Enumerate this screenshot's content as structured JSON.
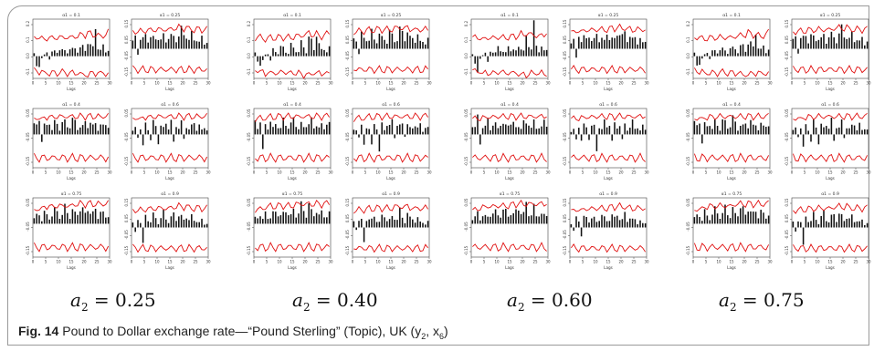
{
  "caption": {
    "figure_label": "Fig. 14",
    "text": "Pound to Dollar exchange rate—“Pound Sterling” (Topic), UK (y",
    "sub1": "2",
    "mid": ", x",
    "sub2": "6",
    "end": ")"
  },
  "groups": [
    {
      "var": "a",
      "sub": "2",
      "eq": " = 0.25"
    },
    {
      "var": "a",
      "sub": "2",
      "eq": " = 0.40"
    },
    {
      "var": "a",
      "sub": "2",
      "eq": " = 0.60"
    },
    {
      "var": "a",
      "sub": "2",
      "eq": " = 0.75"
    }
  ],
  "colors": {
    "bars": "#111111",
    "bands": "#e01010",
    "frame": "#444444"
  },
  "chart_data": {
    "type": "bar",
    "description_note": "Grid of 24 lag-correlation panels: 4 groups (a2 values) x 3 rows x 2 columns (a1 values). Bar heights approximate.",
    "x": [
      1,
      2,
      3,
      4,
      5,
      6,
      7,
      8,
      9,
      10,
      11,
      12,
      13,
      14,
      15,
      16,
      17,
      18,
      19,
      20,
      21,
      22,
      23,
      24,
      25,
      26,
      27,
      28,
      29,
      30
    ],
    "xticks": [
      "0",
      "5",
      "10",
      "15",
      "20",
      "25",
      "30"
    ],
    "xlabel": "Lags",
    "panel_titles": [
      "α1 = 0.1",
      "α1 = 0.25",
      "α1 = 0.4",
      "α1 = 0.6",
      "α1 = 0.75",
      "α1 = 0.9"
    ],
    "panels": [
      {
        "group": 0,
        "title": "α1 = 0.1",
        "yticks": [
          "0.2",
          "0.1",
          "0.0",
          "-0.1"
        ],
        "ylim": [
          -0.15,
          0.25
        ],
        "values": [
          0.02,
          -0.05,
          -0.08,
          -0.02,
          0.01,
          0.02,
          -0.03,
          0.04,
          0.03,
          0.02,
          0.06,
          0.05,
          0.03,
          0.02,
          0.07,
          0.05,
          0.04,
          0.03,
          0.08,
          0.06,
          0.03,
          0.12,
          0.09,
          0.05,
          0.18,
          0.07,
          0.04,
          0.06,
          0.03,
          0.05
        ],
        "upper": [
          0.12,
          0.13,
          0.13,
          0.12,
          0.11,
          0.12,
          0.13,
          0.12,
          0.12,
          0.13,
          0.13,
          0.12,
          0.13,
          0.13,
          0.12,
          0.13,
          0.14,
          0.13,
          0.14,
          0.15,
          0.14,
          0.16,
          0.15,
          0.14,
          0.15,
          0.14,
          0.13,
          0.14,
          0.15,
          0.16
        ],
        "lower": [
          -0.09,
          -0.1,
          -0.11,
          -0.1,
          -0.12,
          -0.11,
          -0.12,
          -0.11,
          -0.11,
          -0.12,
          -0.11,
          -0.1,
          -0.11,
          -0.12,
          -0.11,
          -0.11,
          -0.12,
          -0.11,
          -0.12,
          -0.13,
          -0.12,
          -0.13,
          -0.12,
          -0.11,
          -0.12,
          -0.11,
          -0.12,
          -0.11,
          -0.12,
          -0.12
        ]
      },
      {
        "group": 0,
        "title": "α1 = 0.25",
        "yticks": [
          "0.15",
          "0.05",
          "-0.05",
          "-0.15"
        ],
        "ylim": [
          -0.18,
          0.18
        ],
        "values": [
          0.05,
          0.06,
          -0.04,
          0.08,
          0.06,
          0.07,
          0.05,
          0.09,
          0.06,
          0.05,
          0.08,
          0.06,
          0.07,
          0.04,
          0.09,
          0.08,
          0.06,
          0.05,
          0.1,
          0.11,
          0.07,
          0.09,
          0.06,
          0.08,
          0.05,
          0.07,
          0.04,
          0.06,
          0.03,
          0.05
        ],
        "upper": [
          0.1,
          0.1,
          0.11,
          0.11,
          0.1,
          0.11,
          0.12,
          0.11,
          0.11,
          0.12,
          0.12,
          0.11,
          0.12,
          0.12,
          0.11,
          0.12,
          0.13,
          0.12,
          0.13,
          0.13,
          0.12,
          0.13,
          0.12,
          0.12,
          0.11,
          0.12,
          0.12,
          0.11,
          0.12,
          0.12
        ],
        "lower": [
          -0.12,
          -0.12,
          -0.13,
          -0.13,
          -0.12,
          -0.13,
          -0.13,
          -0.12,
          -0.13,
          -0.13,
          -0.12,
          -0.13,
          -0.13,
          -0.12,
          -0.13,
          -0.13,
          -0.12,
          -0.13,
          -0.13,
          -0.12,
          -0.13,
          -0.13,
          -0.12,
          -0.13,
          -0.13,
          -0.12,
          -0.13,
          -0.13,
          -0.12,
          -0.13
        ]
      },
      {
        "group": 0,
        "title": "α1 = 0.4",
        "yticks": [
          "0.05",
          "-0.05",
          "-0.15"
        ],
        "ylim": [
          -0.18,
          0.14
        ],
        "values": [
          0.06,
          0.04,
          0.08,
          -0.06,
          0.05,
          0.04,
          0.07,
          0.03,
          0.06,
          0.05,
          0.03,
          0.07,
          0.06,
          0.04,
          0.05,
          0.08,
          0.06,
          0.03,
          0.05,
          0.04,
          0.06,
          0.05,
          0.07,
          0.04,
          0.06,
          0.03,
          0.05,
          0.04,
          0.06,
          0.05
        ],
        "upper": [
          0.08,
          0.09,
          0.09,
          0.08,
          0.09,
          0.09,
          0.1,
          0.09,
          0.09,
          0.1,
          0.1,
          0.09,
          0.1,
          0.1,
          0.09,
          0.1,
          0.1,
          0.09,
          0.1,
          0.1,
          0.09,
          0.1,
          0.1,
          0.09,
          0.1,
          0.1,
          0.09,
          0.1,
          0.1,
          0.1
        ],
        "lower": [
          -0.12,
          -0.13,
          -0.13,
          -0.12,
          -0.13,
          -0.13,
          -0.12,
          -0.13,
          -0.13,
          -0.12,
          -0.13,
          -0.13,
          -0.12,
          -0.13,
          -0.13,
          -0.12,
          -0.13,
          -0.13,
          -0.12,
          -0.13,
          -0.13,
          -0.12,
          -0.13,
          -0.13,
          -0.12,
          -0.13,
          -0.13,
          -0.12,
          -0.13,
          -0.13
        ]
      },
      {
        "group": 0,
        "title": "α1 = 0.6",
        "yticks": [
          "0.05",
          "-0.05",
          "-0.15"
        ],
        "ylim": [
          -0.18,
          0.14
        ],
        "values": [
          0.02,
          0.03,
          -0.02,
          0.04,
          -0.05,
          0.05,
          0.03,
          -0.04,
          0.06,
          0.04,
          -0.08,
          0.05,
          0.03,
          0.06,
          0.04,
          0.07,
          -0.03,
          0.05,
          0.04,
          0.06,
          -0.02,
          0.05,
          0.03,
          0.04,
          0.06,
          0.03,
          0.05,
          0.02,
          0.04,
          0.03
        ],
        "upper": [
          0.08,
          0.09,
          0.09,
          0.08,
          0.09,
          0.09,
          0.1,
          0.09,
          0.09,
          0.1,
          0.1,
          0.09,
          0.1,
          0.1,
          0.09,
          0.1,
          0.1,
          0.09,
          0.1,
          0.1,
          0.09,
          0.1,
          0.1,
          0.09,
          0.1,
          0.1,
          0.09,
          0.1,
          0.1,
          0.1
        ],
        "lower": [
          -0.12,
          -0.13,
          -0.13,
          -0.12,
          -0.13,
          -0.13,
          -0.12,
          -0.13,
          -0.13,
          -0.12,
          -0.13,
          -0.13,
          -0.12,
          -0.13,
          -0.13,
          -0.12,
          -0.13,
          -0.13,
          -0.12,
          -0.13,
          -0.13,
          -0.12,
          -0.13,
          -0.13,
          -0.12,
          -0.13,
          -0.13,
          -0.12,
          -0.13,
          -0.13
        ]
      },
      {
        "group": 0,
        "title": "α1 = 0.75",
        "yticks": [
          "0.05",
          "-0.05",
          "-0.15"
        ],
        "ylim": [
          -0.18,
          0.14
        ],
        "values": [
          0.03,
          0.04,
          0.05,
          0.02,
          0.06,
          0.04,
          0.03,
          0.05,
          0.07,
          0.06,
          0.04,
          0.05,
          0.08,
          0.06,
          0.04,
          0.07,
          0.05,
          0.06,
          0.09,
          0.07,
          0.05,
          0.1,
          0.06,
          0.05,
          0.08,
          0.04,
          0.06,
          0.05,
          0.04,
          0.05
        ],
        "upper": [
          0.07,
          0.08,
          0.08,
          0.08,
          0.09,
          0.09,
          0.1,
          0.09,
          0.09,
          0.1,
          0.1,
          0.09,
          0.1,
          0.1,
          0.09,
          0.1,
          0.11,
          0.1,
          0.11,
          0.11,
          0.1,
          0.11,
          0.11,
          0.1,
          0.11,
          0.11,
          0.1,
          0.11,
          0.11,
          0.11
        ],
        "lower": [
          -0.12,
          -0.13,
          -0.13,
          -0.12,
          -0.13,
          -0.13,
          -0.12,
          -0.13,
          -0.13,
          -0.12,
          -0.13,
          -0.13,
          -0.12,
          -0.13,
          -0.13,
          -0.12,
          -0.13,
          -0.13,
          -0.12,
          -0.13,
          -0.13,
          -0.12,
          -0.13,
          -0.13,
          -0.12,
          -0.13,
          -0.13,
          -0.12,
          -0.13,
          -0.13
        ]
      },
      {
        "group": 0,
        "title": "α1 = 0.9",
        "yticks": [
          "0.15",
          "0.05",
          "-0.05",
          "-0.15"
        ],
        "ylim": [
          -0.18,
          0.18
        ],
        "values": [
          0.03,
          -0.02,
          0.05,
          0.04,
          -0.08,
          0.06,
          0.05,
          0.04,
          0.07,
          0.05,
          0.03,
          0.06,
          0.08,
          0.05,
          0.04,
          0.06,
          0.07,
          0.05,
          0.09,
          0.06,
          0.04,
          0.08,
          0.05,
          0.06,
          0.04,
          0.05,
          0.03,
          0.04,
          0.02,
          0.03
        ],
        "upper": [
          0.1,
          0.1,
          0.11,
          0.11,
          0.1,
          0.11,
          0.12,
          0.11,
          0.11,
          0.12,
          0.12,
          0.11,
          0.12,
          0.12,
          0.11,
          0.12,
          0.13,
          0.12,
          0.13,
          0.13,
          0.12,
          0.13,
          0.12,
          0.12,
          0.11,
          0.12,
          0.12,
          0.11,
          0.12,
          0.12
        ],
        "lower": [
          -0.12,
          -0.12,
          -0.13,
          -0.13,
          -0.12,
          -0.13,
          -0.13,
          -0.12,
          -0.13,
          -0.13,
          -0.12,
          -0.13,
          -0.13,
          -0.12,
          -0.13,
          -0.13,
          -0.12,
          -0.13,
          -0.13,
          -0.12,
          -0.13,
          -0.13,
          -0.12,
          -0.13,
          -0.13,
          -0.12,
          -0.13,
          -0.13,
          -0.12,
          -0.13
        ]
      }
    ]
  }
}
